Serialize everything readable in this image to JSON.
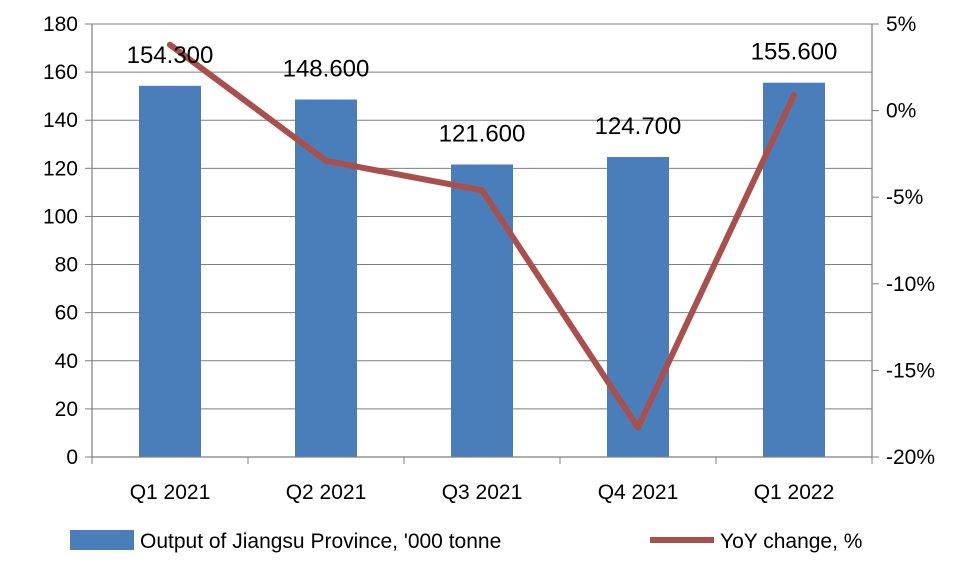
{
  "chart_data": {
    "type": "bar",
    "title": "",
    "categories": [
      "Q1 2021",
      "Q2 2021",
      "Q3 2021",
      "Q4 2021",
      "Q1 2022"
    ],
    "series": [
      {
        "name": "Output of Jiangsu Province, '000 tonne",
        "type": "bar",
        "axis": "left",
        "values": [
          154.3,
          148.6,
          121.6,
          124.7,
          155.6
        ],
        "labels": [
          "154.300",
          "148.600",
          "121.600",
          "124.700",
          "155.600"
        ]
      },
      {
        "name": "YoY change, %",
        "type": "line",
        "axis": "right",
        "values": [
          3.8,
          -2.9,
          -4.6,
          -18.3,
          0.9
        ]
      }
    ],
    "left_axis": {
      "ylim": [
        0,
        180
      ],
      "ticks": [
        "0",
        "20",
        "40",
        "60",
        "80",
        "100",
        "120",
        "140",
        "160",
        "180"
      ]
    },
    "right_axis": {
      "ylim": [
        -20,
        5
      ],
      "ticks": [
        "-20%",
        "-15%",
        "-10%",
        "-5%",
        "0%",
        "5%"
      ]
    },
    "grid": true,
    "legend_position": "bottom",
    "colors": {
      "bar": "#4a7ebb",
      "line": "#a9504d",
      "grid": "#7f7f7f",
      "axis": "#7f7f7f"
    }
  }
}
